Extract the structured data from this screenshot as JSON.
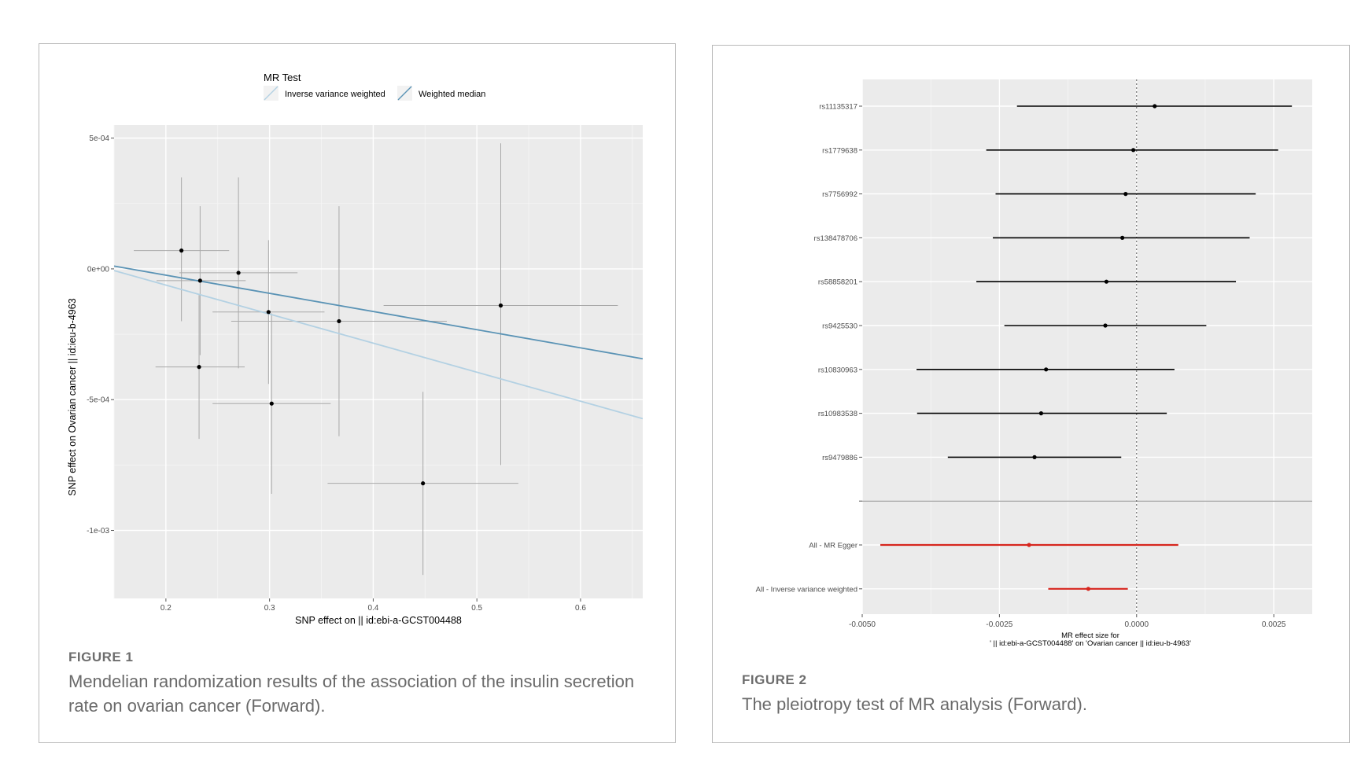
{
  "figures": [
    {
      "label": "FIGURE 1",
      "caption": "Mendelian randomization results of the association of the insulin secretion rate on ovarian cancer (Forward)."
    },
    {
      "label": "FIGURE 2",
      "caption": "The pleiotropy test of MR analysis (Forward)."
    }
  ],
  "chart_data": [
    {
      "type": "scatter",
      "title": "",
      "xlabel": "SNP effect on  || id:ebi-a-GCST004488",
      "ylabel": "SNP effect on Ovarian cancer || id:ieu-b-4963",
      "xlim": [
        0.15,
        0.66
      ],
      "ylim": [
        -0.00126,
        0.00055
      ],
      "x_ticks": [
        0.2,
        0.3,
        0.4,
        0.5,
        0.6
      ],
      "x_tick_labels": [
        "0.2",
        "0.3",
        "0.4",
        "0.5",
        "0.6"
      ],
      "y_ticks": [
        0.0005,
        0,
        -0.0005,
        -0.001
      ],
      "y_tick_labels": [
        "5e-04",
        "0e+00",
        "-5e-04",
        "-1e-03"
      ],
      "grid": true,
      "legend": {
        "title": "MR Test",
        "position": "top",
        "entries": [
          {
            "name": "Inverse variance weighted",
            "color": "#b3d1e3"
          },
          {
            "name": "Weighted median",
            "color": "#5a93b5"
          }
        ]
      },
      "points": [
        {
          "x": 0.215,
          "y": 7e-05,
          "xlo": 0.169,
          "xhi": 0.261,
          "ylo": -0.0002,
          "yhi": 0.00035
        },
        {
          "x": 0.233,
          "y": -4.5e-05,
          "xlo": 0.191,
          "xhi": 0.277,
          "ylo": -0.00033,
          "yhi": 0.00024
        },
        {
          "x": 0.27,
          "y": -1.5e-05,
          "xlo": 0.213,
          "xhi": 0.327,
          "ylo": -0.00038,
          "yhi": 0.00035
        },
        {
          "x": 0.299,
          "y": -0.000165,
          "xlo": 0.245,
          "xhi": 0.353,
          "ylo": -0.00044,
          "yhi": 0.00011
        },
        {
          "x": 0.367,
          "y": -0.0002,
          "xlo": 0.263,
          "xhi": 0.471,
          "ylo": -0.00064,
          "yhi": 0.00024
        },
        {
          "x": 0.523,
          "y": -0.00014,
          "xlo": 0.41,
          "xhi": 0.636,
          "ylo": -0.00075,
          "yhi": 0.00048
        },
        {
          "x": 0.232,
          "y": -0.000375,
          "xlo": 0.19,
          "xhi": 0.276,
          "ylo": -0.00065,
          "yhi": -0.0001
        },
        {
          "x": 0.302,
          "y": -0.000515,
          "xlo": 0.245,
          "xhi": 0.359,
          "ylo": -0.00086,
          "yhi": -0.00017
        },
        {
          "x": 0.448,
          "y": -0.00082,
          "xlo": 0.356,
          "xhi": 0.54,
          "ylo": -0.00117,
          "yhi": -0.00047
        }
      ],
      "lines": [
        {
          "name": "Inverse variance weighted",
          "intercept": 0.00016,
          "slope": -0.00111
        },
        {
          "name": "Weighted median",
          "intercept": 0.000115,
          "slope": -0.000695
        }
      ]
    },
    {
      "type": "forest",
      "title": "",
      "xlabel_lines": [
        "MR effect size for",
        "' || id:ebi-a-GCST004488' on 'Ovarian cancer || id:ieu-b-4963'"
      ],
      "xlim": [
        -0.005,
        0.0032
      ],
      "x_ticks": [
        -0.005,
        -0.0025,
        0,
        0.0025
      ],
      "x_tick_labels": [
        "-0.0050",
        "-0.0025",
        "0.0000",
        "0.0025"
      ],
      "reference_line": 0,
      "grid": true,
      "rows": [
        {
          "label": "rs11135317",
          "est": 0.00033,
          "lo": -0.00218,
          "hi": 0.00283,
          "color": "#000000"
        },
        {
          "label": "rs1779638",
          "est": -6e-05,
          "lo": -0.00274,
          "hi": 0.00258,
          "color": "#000000"
        },
        {
          "label": "rs7756992",
          "est": -0.0002,
          "lo": -0.00257,
          "hi": 0.00217,
          "color": "#000000"
        },
        {
          "label": "rs138478706",
          "est": -0.00026,
          "lo": -0.00262,
          "hi": 0.00206,
          "color": "#000000"
        },
        {
          "label": "rs58858201",
          "est": -0.00055,
          "lo": -0.00292,
          "hi": 0.00181,
          "color": "#000000"
        },
        {
          "label": "rs9425530",
          "est": -0.00057,
          "lo": -0.00241,
          "hi": 0.00127,
          "color": "#000000"
        },
        {
          "label": "rs10830963",
          "est": -0.00165,
          "lo": -0.00401,
          "hi": 0.00069,
          "color": "#000000"
        },
        {
          "label": "rs10983538",
          "est": -0.00174,
          "lo": -0.004,
          "hi": 0.00055,
          "color": "#000000"
        },
        {
          "label": "rs9479886",
          "est": -0.00186,
          "lo": -0.00344,
          "hi": -0.00028,
          "color": "#000000"
        },
        {
          "label": "",
          "est": null,
          "lo": null,
          "hi": null,
          "color": "#000000"
        },
        {
          "label": "All - MR Egger",
          "est": -0.00196,
          "lo": -0.00467,
          "hi": 0.00076,
          "color": "#d7261e"
        },
        {
          "label": "All - Inverse variance weighted",
          "est": -0.00088,
          "lo": -0.00161,
          "hi": -0.00016,
          "color": "#d7261e"
        }
      ]
    }
  ]
}
